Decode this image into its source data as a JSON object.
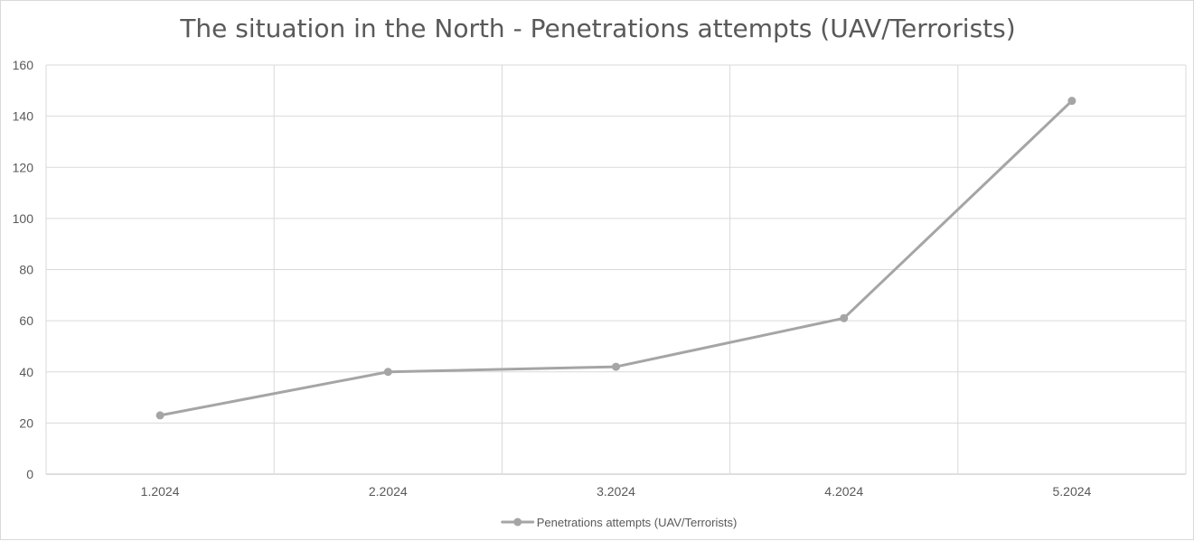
{
  "chart_data": {
    "type": "line",
    "title": "The situation in the North - Penetrations attempts (UAV/Terrorists)",
    "categories": [
      "1.2024",
      "2.2024",
      "3.2024",
      "4.2024",
      "5.2024"
    ],
    "series": [
      {
        "name": "Penetrations attempts (UAV/Terrorists)",
        "values": [
          23,
          40,
          42,
          61,
          146
        ],
        "color": "#a5a5a5"
      }
    ],
    "ylim": [
      0,
      160
    ],
    "yticks": [
      0,
      20,
      40,
      60,
      80,
      100,
      120,
      140,
      160
    ],
    "grid": true,
    "legend": "bottom"
  }
}
